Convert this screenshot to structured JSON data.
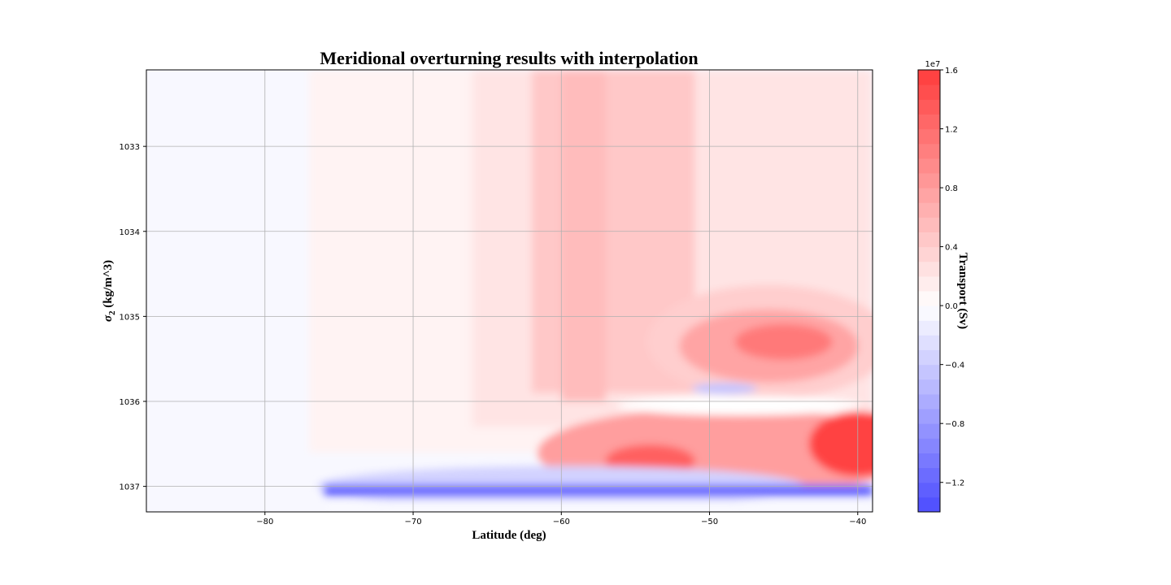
{
  "chart_data": {
    "type": "heatmap",
    "subtype": "filled-contour",
    "title": "Meridional overturning results with interpolation",
    "xlabel": "Latitude (deg)",
    "ylabel_prefix": "σ",
    "ylabel_sub": "2",
    "ylabel_suffix": " (kg/m^3)",
    "xlim": [
      -88,
      -39
    ],
    "ylim": [
      1037.3,
      1032.1
    ],
    "y_inverted": true,
    "grid": true,
    "x_ticks": [
      -80,
      -70,
      -60,
      -50,
      -40
    ],
    "x_tick_labels": [
      "−80",
      "−70",
      "−60",
      "−50",
      "−40"
    ],
    "y_ticks": [
      1033,
      1034,
      1035,
      1036,
      1037
    ],
    "y_tick_labels": [
      "1033",
      "1034",
      "1035",
      "1036",
      "1037"
    ],
    "colorbar": {
      "label": "Transport (Sv)",
      "offset_text": "1e7",
      "cmap": "bwr",
      "vmin": -1.4,
      "vmax": 1.6,
      "ticks": [
        -1.2,
        -0.8,
        -0.4,
        0.0,
        0.4,
        0.8,
        1.2,
        1.6
      ],
      "tick_labels": [
        "−1.2",
        "−0.8",
        "−0.4",
        "0.0",
        "0.4",
        "0.8",
        "1.2",
        "1.6"
      ],
      "levels": 30,
      "color_negative": "#4c4cff",
      "color_positive": "#ff3c3c"
    },
    "units_scale": 10000000.0,
    "features": [
      {
        "name": "background-positive-band",
        "lat_range": [
          -77,
          -39
        ],
        "sigma_range": [
          1032.1,
          1036.6
        ],
        "value": 0.1
      },
      {
        "name": "positive-column",
        "lat_range": [
          -62,
          -51
        ],
        "sigma_range": [
          1032.1,
          1035.9
        ],
        "value": 0.45
      },
      {
        "name": "upper-positive-core",
        "lat": -45,
        "sigma": 1035.3,
        "value": 1.1
      },
      {
        "name": "lower-positive-core",
        "lat": -40,
        "sigma": 1036.5,
        "value": 1.55
      },
      {
        "name": "lower-positive-core-2",
        "lat": -54,
        "sigma": 1036.7,
        "value": 1.3
      },
      {
        "name": "bottom-negative-band",
        "lat_range": [
          -76,
          -39
        ],
        "sigma": 1037.05,
        "value": -1.2
      },
      {
        "name": "mid-negative-lens",
        "lat": -49,
        "sigma": 1035.85,
        "value": -0.45
      }
    ]
  }
}
